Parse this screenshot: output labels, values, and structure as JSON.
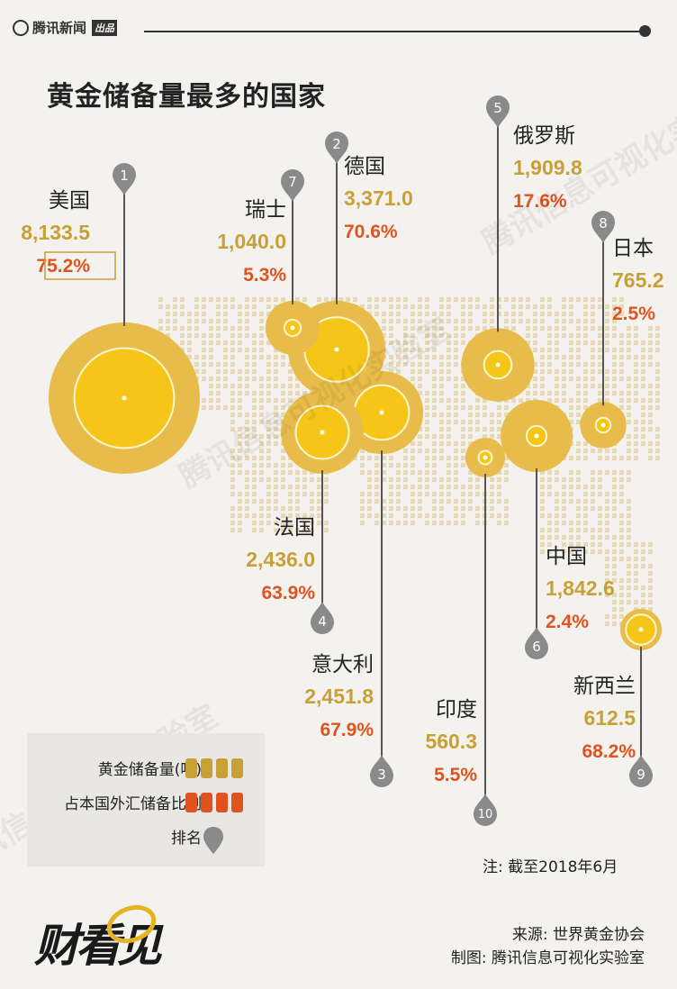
{
  "header": {
    "brand": "腾讯新闻",
    "brand_tag": "出品"
  },
  "title": "黄金储备量最多的国家",
  "watermark_text": "腾讯信息可视化实验室",
  "colors": {
    "outer_ring": "#e8bc4a",
    "inner_fill": "#f5c518",
    "gold_text": "#c8a038",
    "red_text": "#e0531f",
    "pin": "#8a8a8a",
    "map_dots": "#e5d9ba"
  },
  "chart_data": {
    "type": "bubble-map",
    "unit_reserve": "吨",
    "countries": [
      {
        "rank": 1,
        "name": "美国",
        "reserve": "8,133.5",
        "share": "75.2%",
        "reserve_value": 8133.5,
        "share_value": 75.2
      },
      {
        "rank": 2,
        "name": "德国",
        "reserve": "3,371.0",
        "share": "70.6%",
        "reserve_value": 3371.0,
        "share_value": 70.6
      },
      {
        "rank": 3,
        "name": "意大利",
        "reserve": "2,451.8",
        "share": "67.9%",
        "reserve_value": 2451.8,
        "share_value": 67.9
      },
      {
        "rank": 4,
        "name": "法国",
        "reserve": "2,436.0",
        "share": "63.9%",
        "reserve_value": 2436.0,
        "share_value": 63.9
      },
      {
        "rank": 5,
        "name": "俄罗斯",
        "reserve": "1,909.8",
        "share": "17.6%",
        "reserve_value": 1909.8,
        "share_value": 17.6
      },
      {
        "rank": 6,
        "name": "中国",
        "reserve": "1,842.6",
        "share": "2.4%",
        "reserve_value": 1842.6,
        "share_value": 2.4
      },
      {
        "rank": 7,
        "name": "瑞士",
        "reserve": "1,040.0",
        "share": "5.3%",
        "reserve_value": 1040.0,
        "share_value": 5.3
      },
      {
        "rank": 8,
        "name": "日本",
        "reserve": "765.2",
        "share": "2.5%",
        "reserve_value": 765.2,
        "share_value": 2.5
      },
      {
        "rank": 9,
        "name": "新西兰",
        "reserve": "612.5",
        "share": "68.2%",
        "reserve_value": 612.5,
        "share_value": 68.2
      },
      {
        "rank": 10,
        "name": "印度",
        "reserve": "560.3",
        "share": "5.5%",
        "reserve_value": 560.3,
        "share_value": 5.5
      }
    ]
  },
  "legend": {
    "reserve_label": "黄金储备量(吨)",
    "share_label": "占本国外汇储备比例",
    "rank_label": "排名"
  },
  "note": "注: 截至2018年6月",
  "footer": {
    "brand": "财看见",
    "source": "来源: 世界黄金协会",
    "credit": "制图: 腾讯信息可视化实验室"
  }
}
